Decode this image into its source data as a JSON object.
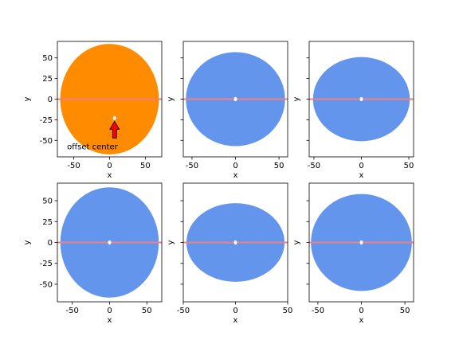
{
  "colors": {
    "background": "#ffffff",
    "axes": "#000000",
    "highlight_fill": "#ff8c00",
    "default_fill": "#6495ed",
    "centerline": "#f08080",
    "center_marker": "#ffffff",
    "arrow_fill": "#ff0000"
  },
  "figure": {
    "sharey": true,
    "rows": 2,
    "cols": 3
  },
  "chart_data": [
    {
      "type": "scatter",
      "panel": "row-1-col-1",
      "xlabel": "x",
      "ylabel": "y",
      "xlim": [
        -73,
        73
      ],
      "ylim": [
        -70,
        70
      ],
      "xticks": [
        -50,
        0,
        50
      ],
      "yticks": [
        -50,
        -25,
        0,
        25,
        50
      ],
      "ellipse": {
        "center": [
          0,
          0
        ],
        "rx": 69,
        "ry": 67
      },
      "fill": "highlight",
      "center_point": [
        7,
        -23
      ],
      "hline_y": 0,
      "annotation": {
        "text": "offset center",
        "xy": [
          7,
          -23
        ],
        "xytext": [
          -24,
          -58
        ]
      }
    },
    {
      "type": "scatter",
      "panel": "row-1-col-2",
      "xlabel": "x",
      "ylabel": "y",
      "xlim": [
        -60,
        60
      ],
      "ylim": [
        -70,
        70
      ],
      "xticks": [
        -50,
        0,
        50
      ],
      "yticks": [
        -50,
        -25,
        0,
        25,
        50
      ],
      "ellipse": {
        "center": [
          0,
          0
        ],
        "rx": 57,
        "ry": 57
      },
      "fill": "default",
      "center_point": [
        0,
        0
      ],
      "hline_y": 0
    },
    {
      "type": "scatter",
      "panel": "row-1-col-3",
      "xlabel": "x",
      "ylabel": "y",
      "xlim": [
        -55,
        55
      ],
      "ylim": [
        -70,
        70
      ],
      "xticks": [
        -50,
        0,
        50
      ],
      "yticks": [
        -50,
        -25,
        0,
        25,
        50
      ],
      "ellipse": {
        "center": [
          0,
          0
        ],
        "rx": 51,
        "ry": 51
      },
      "fill": "default",
      "center_point": [
        0,
        0
      ],
      "hline_y": 0
    },
    {
      "type": "scatter",
      "panel": "row-2-col-1",
      "xlabel": "x",
      "ylabel": "y",
      "xlim": [
        -70,
        70
      ],
      "ylim": [
        -71,
        71
      ],
      "xticks": [
        -50,
        0,
        50
      ],
      "yticks": [
        -50,
        -25,
        0,
        25,
        50
      ],
      "ellipse": {
        "center": [
          0,
          0
        ],
        "rx": 66,
        "ry": 66
      },
      "fill": "default",
      "center_point": [
        0,
        0
      ],
      "hline_y": 0
    },
    {
      "type": "scatter",
      "panel": "row-2-col-2",
      "xlabel": "x",
      "ylabel": "y",
      "xlim": [
        -50,
        50
      ],
      "ylim": [
        -71,
        71
      ],
      "xticks": [
        -50,
        0,
        50
      ],
      "yticks": [
        -50,
        -25,
        0,
        25,
        50
      ],
      "ellipse": {
        "center": [
          0,
          0
        ],
        "rx": 47,
        "ry": 47
      },
      "fill": "default",
      "center_point": [
        0,
        0
      ],
      "hline_y": 0
    },
    {
      "type": "scatter",
      "panel": "row-2-col-3",
      "xlabel": "x",
      "ylabel": "y",
      "xlim": [
        -60,
        60
      ],
      "ylim": [
        -71,
        71
      ],
      "xticks": [
        -50,
        0,
        50
      ],
      "yticks": [
        -50,
        -25,
        0,
        25,
        50
      ],
      "ellipse": {
        "center": [
          0,
          0
        ],
        "rx": 58,
        "ry": 58
      },
      "fill": "default",
      "center_point": [
        0,
        0
      ],
      "hline_y": 0
    }
  ]
}
